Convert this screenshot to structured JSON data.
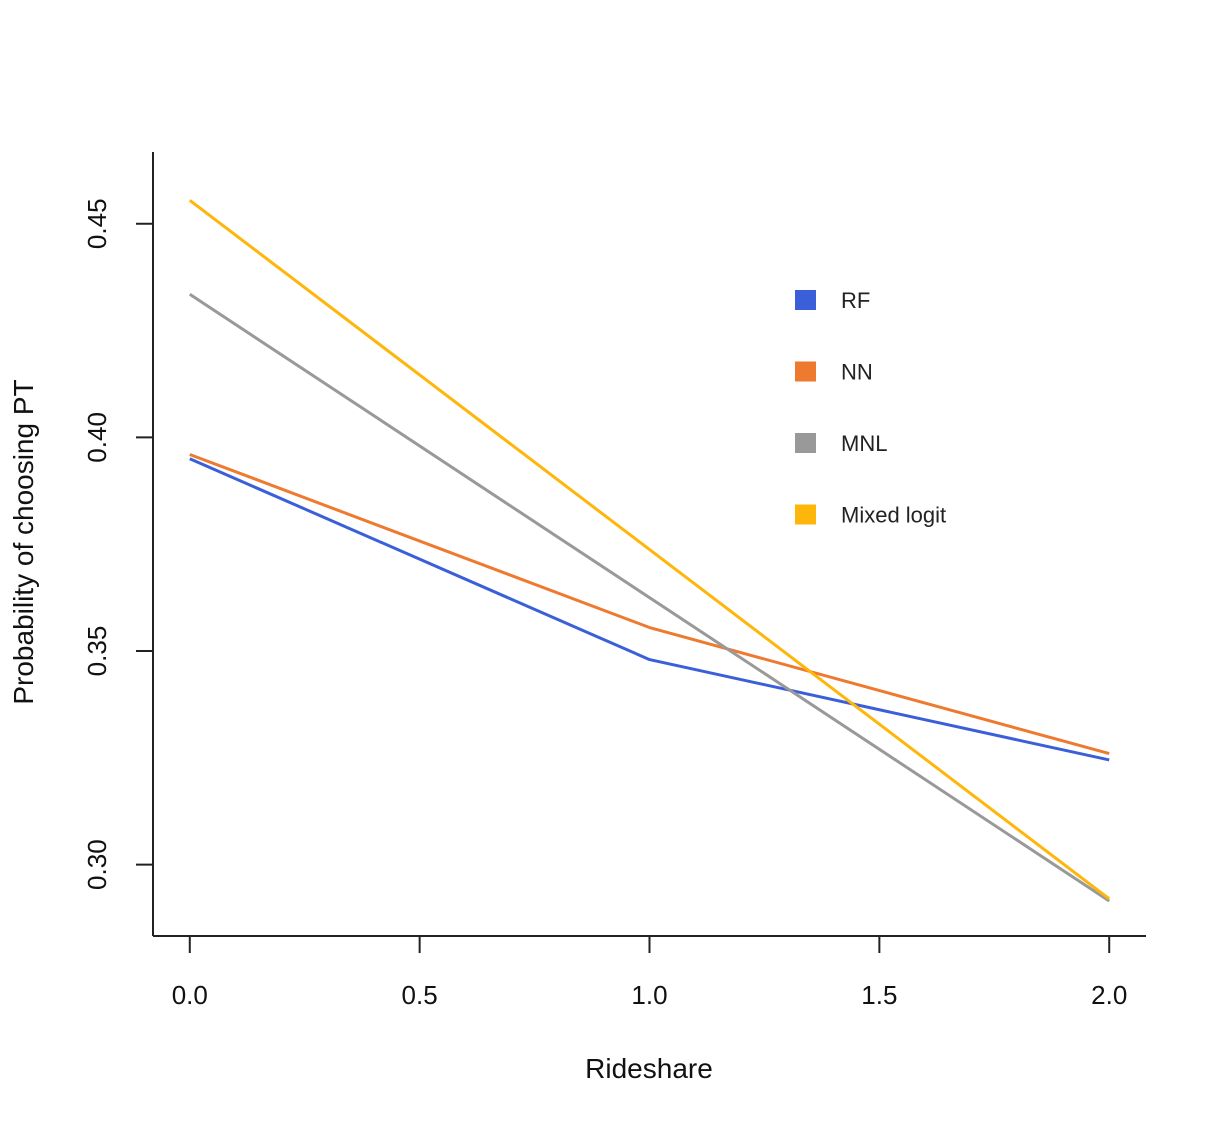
{
  "chart_data": {
    "type": "line",
    "title": "",
    "xlabel": "Rideshare",
    "ylabel": "Probability of choosing PT",
    "xlim": [
      -0.08,
      2.08
    ],
    "ylim": [
      0.2833,
      0.4668
    ],
    "xticks": [
      0.0,
      0.5,
      1.0,
      1.5,
      2.0
    ],
    "xtick_labels": [
      "0.0",
      "0.5",
      "1.0",
      "1.5",
      "2.0"
    ],
    "yticks": [
      0.3,
      0.35,
      0.4,
      0.45
    ],
    "ytick_labels": [
      "0.30",
      "0.35",
      "0.40",
      "0.45"
    ],
    "grid": false,
    "legend_position": "top-right",
    "series": [
      {
        "name": "RF",
        "color": "#3A5FD9",
        "x": [
          0,
          1,
          2
        ],
        "y": [
          0.395,
          0.348,
          0.3245
        ]
      },
      {
        "name": "NN",
        "color": "#EE7A30",
        "x": [
          0,
          1,
          2
        ],
        "y": [
          0.396,
          0.3555,
          0.326
        ]
      },
      {
        "name": "MNL",
        "color": "#999999",
        "x": [
          0,
          2
        ],
        "y": [
          0.4335,
          0.2915
        ]
      },
      {
        "name": "Mixed logit",
        "color": "#FFB60A",
        "x": [
          0,
          2
        ],
        "y": [
          0.4555,
          0.292
        ]
      }
    ]
  }
}
